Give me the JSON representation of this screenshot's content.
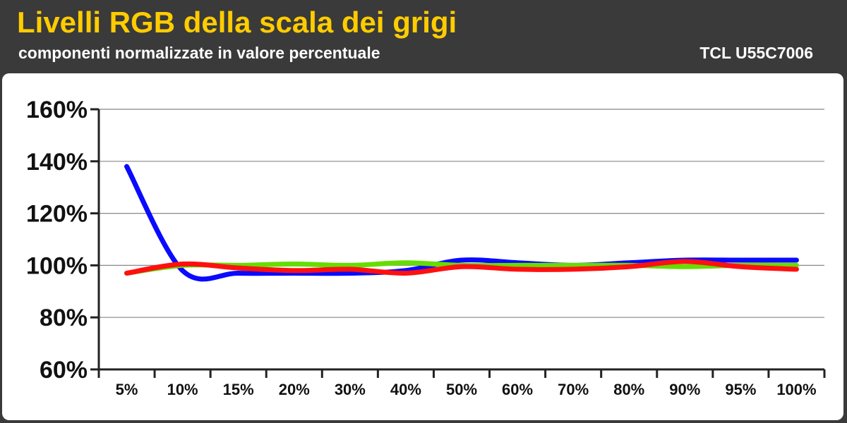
{
  "header": {
    "title": "Livelli RGB della scala dei grigi",
    "subtitle": "componenti normalizzate in valore percentuale",
    "model": "TCL U55C7006"
  },
  "colors": {
    "title": "#ffcc00",
    "background": "#3a3a3a",
    "blue": "#0a0aff",
    "green": "#66dd00",
    "red": "#ff1010"
  },
  "chart_data": {
    "type": "line",
    "categories": [
      "5%",
      "10%",
      "15%",
      "20%",
      "30%",
      "40%",
      "50%",
      "60%",
      "70%",
      "80%",
      "90%",
      "95%",
      "100%"
    ],
    "yticks": [
      "60%",
      "80%",
      "100%",
      "120%",
      "140%",
      "160%"
    ],
    "ylim": [
      60,
      160
    ],
    "grid": true,
    "series": [
      {
        "color_key": "blue",
        "values": [
          138,
          98,
          97,
          97,
          97,
          98,
          102,
          101,
          100,
          101,
          102,
          102,
          102
        ]
      },
      {
        "color_key": "green",
        "values": [
          97,
          100,
          100,
          100.5,
          100,
          101,
          100,
          100,
          100,
          100,
          99.5,
          100,
          100
        ]
      },
      {
        "color_key": "red",
        "values": [
          97,
          100.5,
          99,
          98,
          98.5,
          97,
          99.5,
          98.5,
          98.5,
          99.5,
          101.5,
          99.5,
          98.5
        ]
      }
    ]
  }
}
